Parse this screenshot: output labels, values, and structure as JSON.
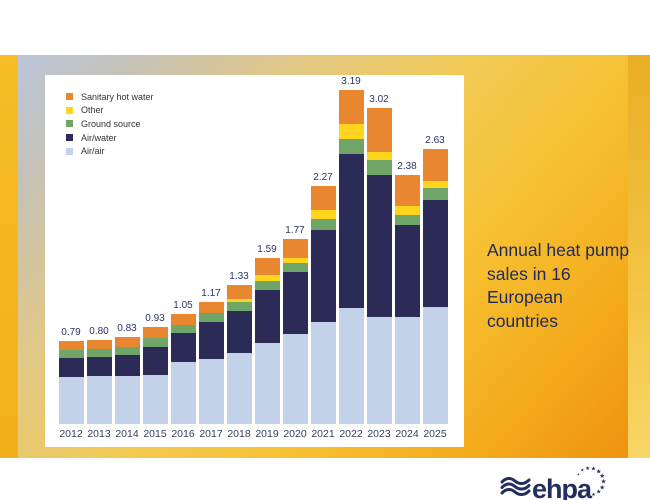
{
  "page": {
    "caption": "Annual heat pump sales in 16 European countries",
    "logo_text": "ehpa"
  },
  "colors": {
    "sanitary_hot_water": "#E8872F",
    "other": "#FFD41C",
    "ground_source": "#6FA566",
    "air_water": "#2C2A56",
    "air_air": "#C3D2E8",
    "caption_text": "#1d2a5e",
    "logo_navy": "#232D5F",
    "slide_gold": "#f4b822",
    "slide_orange": "#ee8f0e",
    "slide_blue": "#b7c6e1"
  },
  "chart_data": {
    "type": "bar",
    "stacked": true,
    "title": "",
    "xlabel": "",
    "ylabel": "",
    "unit": "million units (implied)",
    "grid": false,
    "legend_position": "top-left",
    "ylim": [
      0,
      3.4
    ],
    "categories": [
      "2012",
      "2013",
      "2014",
      "2015",
      "2016",
      "2017",
      "2018",
      "2019",
      "2020",
      "2021",
      "2022",
      "2023",
      "2024",
      "2025"
    ],
    "series": [
      {
        "name": "Air/air",
        "color": "#C3D2E8",
        "values": [
          0.45,
          0.46,
          0.46,
          0.47,
          0.59,
          0.62,
          0.68,
          0.77,
          0.86,
          0.97,
          1.11,
          1.02,
          1.02,
          1.12
        ]
      },
      {
        "name": "Air/water",
        "color": "#2C2A56",
        "values": [
          0.18,
          0.18,
          0.2,
          0.27,
          0.28,
          0.35,
          0.4,
          0.51,
          0.59,
          0.88,
          1.47,
          1.36,
          0.88,
          1.02
        ]
      },
      {
        "name": "Ground source",
        "color": "#6FA566",
        "values": [
          0.08,
          0.08,
          0.08,
          0.08,
          0.08,
          0.09,
          0.09,
          0.09,
          0.09,
          0.11,
          0.14,
          0.14,
          0.1,
          0.11
        ]
      },
      {
        "name": "Other",
        "color": "#FFD41C",
        "values": [
          0.0,
          0.0,
          0.0,
          0.0,
          0.0,
          0.0,
          0.02,
          0.05,
          0.05,
          0.08,
          0.15,
          0.08,
          0.08,
          0.07
        ]
      },
      {
        "name": "Sanitary hot water",
        "color": "#E8872F",
        "values": [
          0.08,
          0.08,
          0.09,
          0.11,
          0.1,
          0.11,
          0.14,
          0.17,
          0.18,
          0.23,
          0.32,
          0.42,
          0.3,
          0.31
        ]
      }
    ],
    "totals": [
      0.79,
      0.8,
      0.83,
      0.93,
      1.05,
      1.17,
      1.33,
      1.59,
      1.77,
      2.27,
      3.19,
      3.02,
      2.38,
      2.63
    ],
    "legend": {
      "items": [
        {
          "label": "Sanitary hot water",
          "color": "#E8872F"
        },
        {
          "label": "Other",
          "color": "#FFD41C"
        },
        {
          "label": "Ground source",
          "color": "#6FA566"
        },
        {
          "label": "Air/water",
          "color": "#2C2A56"
        },
        {
          "label": "Air/air",
          "color": "#C3D2E8"
        }
      ]
    }
  }
}
